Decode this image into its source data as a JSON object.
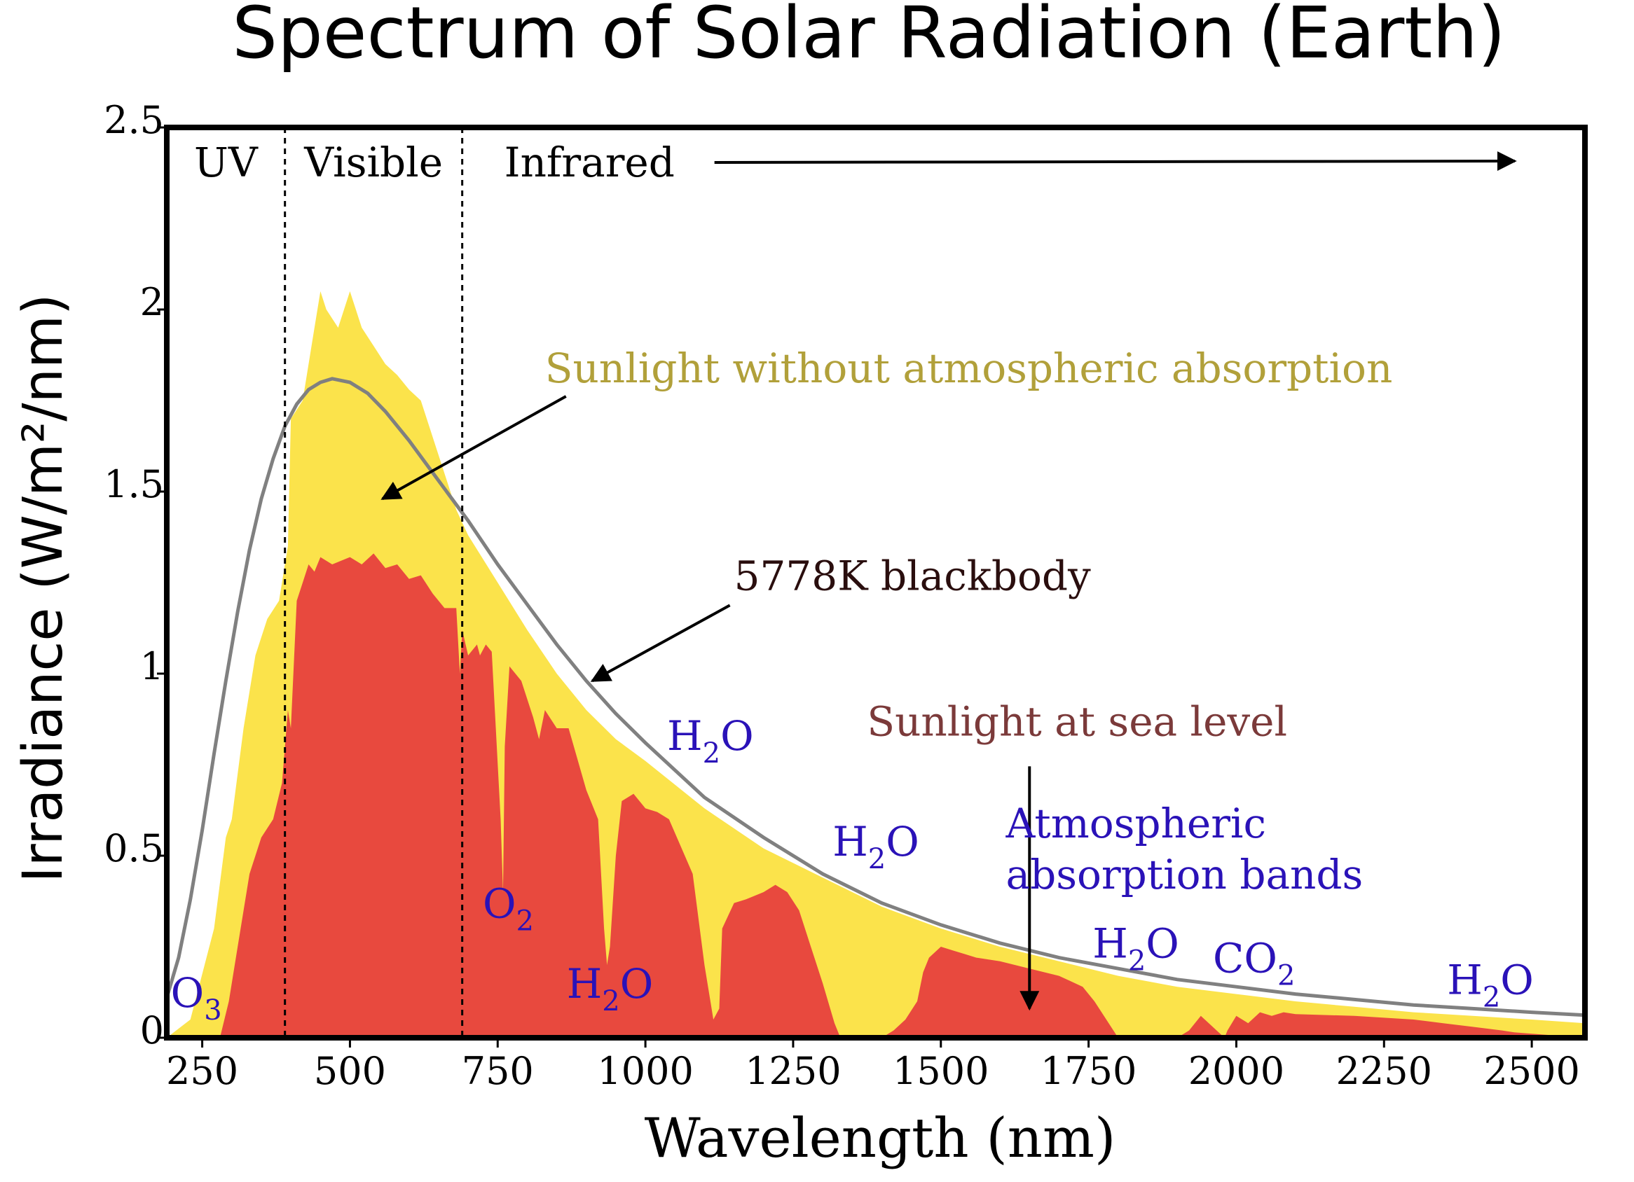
{
  "chart_data": {
    "type": "area",
    "title": "Spectrum of Solar Radiation (Earth)",
    "xlabel": "Wavelength (nm)",
    "ylabel": "Irradiance (W/m²/nm)",
    "xlim": [
      190,
      2590
    ],
    "ylim": [
      0,
      2.5
    ],
    "x_ticks": [
      250,
      500,
      750,
      1000,
      1250,
      1500,
      1750,
      2000,
      2250,
      2500
    ],
    "y_ticks": [
      {
        "value": 0,
        "label": "0"
      },
      {
        "value": 0.5,
        "label": "0.5"
      },
      {
        "value": 1,
        "label": "1"
      },
      {
        "value": 1.5,
        "label": "1.5"
      },
      {
        "value": 2,
        "label": "2"
      },
      {
        "value": 2.5,
        "label": "2.5"
      }
    ],
    "regions": [
      {
        "label": "UV",
        "from": 190,
        "to": 390
      },
      {
        "label": "Visible",
        "from": 390,
        "to": 690
      },
      {
        "label": "Infrared",
        "from": 690,
        "to": 2590
      }
    ],
    "grid": false,
    "colors": {
      "above_atmosphere": "#fbe34b",
      "sea_level": "#e8493e",
      "blackbody": "#808080",
      "absorption_label": "#2a12b8",
      "above_atmosphere_label": "#b1a03a",
      "sea_level_label": "#7b3a3a",
      "blackbody_label": "#2a0e0e"
    },
    "series": [
      {
        "name": "Sunlight without atmospheric absorption",
        "x": [
          190,
          230,
          270,
          290,
          300,
          320,
          340,
          360,
          380,
          395,
          400,
          420,
          440,
          450,
          460,
          480,
          500,
          520,
          540,
          560,
          580,
          600,
          620,
          650,
          680,
          700,
          750,
          800,
          850,
          900,
          950,
          1000,
          1100,
          1200,
          1300,
          1400,
          1500,
          1600,
          1700,
          1800,
          1900,
          2000,
          2100,
          2200,
          2300,
          2400,
          2500,
          2590
        ],
        "y": [
          0.0,
          0.05,
          0.3,
          0.55,
          0.6,
          0.85,
          1.05,
          1.15,
          1.2,
          1.35,
          1.7,
          1.75,
          1.95,
          2.05,
          2.0,
          1.95,
          2.05,
          1.95,
          1.9,
          1.85,
          1.82,
          1.78,
          1.75,
          1.6,
          1.45,
          1.38,
          1.25,
          1.12,
          1.0,
          0.9,
          0.82,
          0.76,
          0.63,
          0.52,
          0.44,
          0.36,
          0.3,
          0.25,
          0.21,
          0.17,
          0.14,
          0.12,
          0.1,
          0.085,
          0.07,
          0.06,
          0.05,
          0.04
        ]
      },
      {
        "name": "Sunlight at sea level",
        "x": [
          190,
          280,
          295,
          310,
          330,
          350,
          370,
          385,
          395,
          400,
          410,
          420,
          430,
          440,
          450,
          470,
          500,
          520,
          540,
          560,
          580,
          600,
          620,
          640,
          660,
          680,
          686,
          690,
          700,
          715,
          720,
          730,
          740,
          755,
          759,
          762,
          770,
          790,
          810,
          820,
          830,
          850,
          870,
          900,
          920,
          930,
          935,
          940,
          950,
          960,
          980,
          1000,
          1020,
          1040,
          1080,
          1100,
          1110,
          1115,
          1125,
          1130,
          1150,
          1170,
          1200,
          1220,
          1240,
          1260,
          1280,
          1300,
          1320,
          1330,
          1340,
          1400,
          1420,
          1440,
          1460,
          1470,
          1480,
          1500,
          1520,
          1540,
          1560,
          1600,
          1650,
          1700,
          1740,
          1760,
          1780,
          1800,
          1900,
          1920,
          1940,
          1960,
          1980,
          1985,
          2000,
          2020,
          2040,
          2060,
          2080,
          2100,
          2200,
          2300,
          2350,
          2400,
          2450,
          2470,
          2590
        ],
        "y": [
          0.0,
          0.0,
          0.1,
          0.25,
          0.45,
          0.55,
          0.6,
          0.7,
          0.9,
          0.85,
          1.2,
          1.25,
          1.3,
          1.28,
          1.32,
          1.3,
          1.32,
          1.3,
          1.33,
          1.29,
          1.3,
          1.26,
          1.27,
          1.22,
          1.18,
          1.18,
          1.0,
          1.12,
          1.05,
          1.08,
          1.05,
          1.08,
          1.06,
          0.6,
          0.4,
          0.8,
          1.02,
          0.98,
          0.88,
          0.82,
          0.9,
          0.85,
          0.85,
          0.68,
          0.6,
          0.3,
          0.2,
          0.25,
          0.5,
          0.65,
          0.67,
          0.63,
          0.62,
          0.6,
          0.45,
          0.2,
          0.1,
          0.05,
          0.08,
          0.3,
          0.37,
          0.38,
          0.4,
          0.42,
          0.4,
          0.35,
          0.25,
          0.15,
          0.04,
          0.0,
          0.0,
          0.0,
          0.02,
          0.05,
          0.1,
          0.18,
          0.22,
          0.25,
          0.24,
          0.23,
          0.22,
          0.21,
          0.19,
          0.17,
          0.14,
          0.1,
          0.05,
          0.0,
          0.0,
          0.02,
          0.06,
          0.03,
          0.0,
          0.02,
          0.06,
          0.04,
          0.07,
          0.06,
          0.07,
          0.065,
          0.06,
          0.05,
          0.04,
          0.03,
          0.02,
          0.015,
          0.0
        ]
      },
      {
        "name": "5778K blackbody",
        "x": [
          190,
          210,
          230,
          250,
          270,
          290,
          310,
          330,
          350,
          370,
          390,
          410,
          430,
          450,
          470,
          500,
          530,
          560,
          600,
          650,
          700,
          750,
          800,
          850,
          900,
          950,
          1000,
          1100,
          1200,
          1300,
          1400,
          1500,
          1600,
          1700,
          1800,
          1900,
          2000,
          2100,
          2200,
          2300,
          2400,
          2500,
          2590
        ],
        "y": [
          0.11,
          0.22,
          0.38,
          0.57,
          0.78,
          0.98,
          1.17,
          1.34,
          1.48,
          1.59,
          1.68,
          1.74,
          1.78,
          1.8,
          1.81,
          1.8,
          1.77,
          1.72,
          1.64,
          1.53,
          1.42,
          1.3,
          1.19,
          1.08,
          0.98,
          0.89,
          0.81,
          0.66,
          0.55,
          0.45,
          0.37,
          0.31,
          0.26,
          0.22,
          0.19,
          0.16,
          0.14,
          0.12,
          0.105,
          0.09,
          0.08,
          0.07,
          0.062
        ]
      }
    ],
    "annotations": [
      {
        "text": "Sunlight without atmospheric absorption",
        "x": 830,
        "y": 1.8,
        "arrow_to": [
          555,
          1.48
        ],
        "color": "above_atmosphere_label"
      },
      {
        "text": "5778K blackbody",
        "x": 1150,
        "y": 1.23,
        "arrow_to": [
          910,
          0.98
        ],
        "color": "blackbody_label"
      },
      {
        "text": "Sunlight at sea level",
        "x": 1375,
        "y": 0.83,
        "arrow_to": [
          1650,
          0.08
        ],
        "color": "sea_level_label"
      },
      {
        "text": "Atmospheric",
        "x": 1610,
        "y": 0.55,
        "color": "absorption_label"
      },
      {
        "text": "absorption bands",
        "x": 1610,
        "y": 0.41,
        "color": "absorption_label"
      }
    ],
    "absorption_labels": [
      {
        "base": "O",
        "sub": "3",
        "x": 240,
        "y": 0.085
      },
      {
        "base": "O",
        "sub": "2",
        "x": 768,
        "y": 0.33
      },
      {
        "base": "H",
        "sub": "2",
        "tail": "O",
        "x": 940,
        "y": 0.11
      },
      {
        "base": "H",
        "sub": "2",
        "tail": "O",
        "x": 1110,
        "y": 0.79
      },
      {
        "base": "H",
        "sub": "2",
        "tail": "O",
        "x": 1390,
        "y": 0.5
      },
      {
        "base": "H",
        "sub": "2",
        "tail": "O",
        "x": 1830,
        "y": 0.22
      },
      {
        "base": "CO",
        "sub": "2",
        "x": 2030,
        "y": 0.18
      },
      {
        "base": "H",
        "sub": "2",
        "tail": "O",
        "x": 2430,
        "y": 0.12
      }
    ]
  }
}
